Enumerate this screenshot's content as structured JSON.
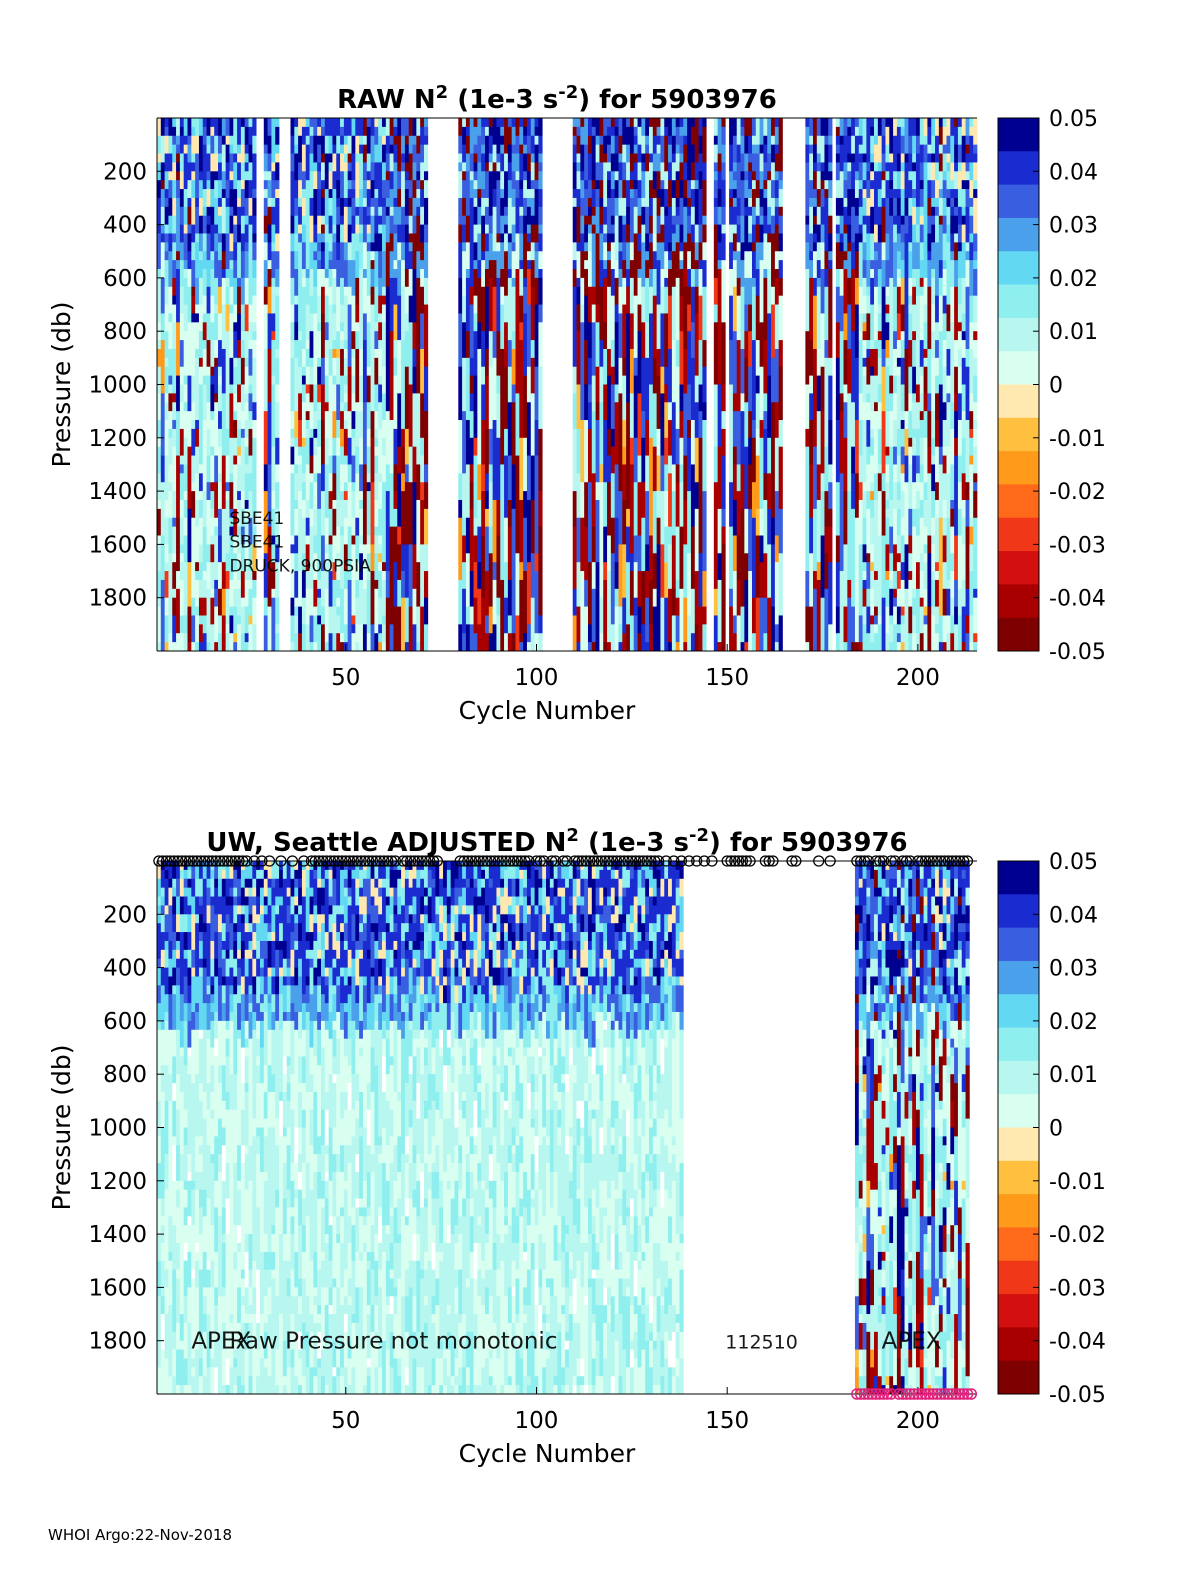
{
  "colors": {
    "axis": "#000000",
    "background": "#ffffff",
    "marker_top": "#000000",
    "marker_bottom": "#e0207a"
  },
  "palette": [
    "#7f0000",
    "#a80000",
    "#d21010",
    "#f03818",
    "#ff6a1a",
    "#ff9a1a",
    "#ffc040",
    "#ffe9b0",
    "#d9fff0",
    "#b8f7ef",
    "#8fefef",
    "#62d8f2",
    "#4aa0ea",
    "#3a5ee0",
    "#1a2cd0",
    "#000090"
  ],
  "chart_data": [
    {
      "type": "heatmap",
      "id": "raw",
      "title": "RAW N",
      "title_sup": "2",
      "title_mid": " (1e-3 s",
      "title_sup2": "-2",
      "title_tail": ") for 5903976",
      "xlabel": "Cycle Number",
      "ylabel": "Pressure (db)",
      "xlim": [
        1,
        215
      ],
      "ylim": [
        0,
        2000
      ],
      "y_reversed": true,
      "xticks": [
        "50",
        "100",
        "150",
        "200"
      ],
      "xtick_values": [
        50,
        100,
        150,
        200
      ],
      "yticks": [
        "200",
        "400",
        "600",
        "800",
        "1000",
        "1200",
        "1400",
        "1600",
        "1800"
      ],
      "ytick_values": [
        200,
        400,
        600,
        800,
        1000,
        1200,
        1400,
        1600,
        1800
      ],
      "clim": [
        -0.05,
        0.05
      ],
      "colorbar_ticks": [
        "0.05",
        "0.04",
        "0.03",
        "0.02",
        "0.01",
        "0",
        "-0.01",
        "-0.02",
        "-0.03",
        "-0.04",
        "-0.05"
      ],
      "colorbar_tick_values": [
        0.05,
        0.04,
        0.03,
        0.02,
        0.01,
        0,
        -0.01,
        -0.02,
        -0.03,
        -0.04,
        -0.05
      ],
      "missing_cycles": [
        [
          27,
          28
        ],
        [
          33,
          35
        ],
        [
          72,
          79
        ],
        [
          102,
          109
        ],
        [
          145,
          146
        ],
        [
          150,
          150
        ],
        [
          165,
          170
        ],
        [
          178,
          178
        ]
      ],
      "annotations": [
        {
          "text": "SBE41",
          "x": 20,
          "y": 1500
        },
        {
          "text": "SBE41",
          "x": 20,
          "y": 1590
        },
        {
          "text": "DRUCK, 900PSIA",
          "x": 20,
          "y": 1680
        }
      ]
    },
    {
      "type": "heatmap",
      "id": "adjusted",
      "title": "UW, Seattle  ADJUSTED N",
      "title_sup": "2",
      "title_mid": " (1e-3 s",
      "title_sup2": "-2",
      "title_tail": ") for 5903976",
      "xlabel": "Cycle Number",
      "ylabel": "Pressure (db)",
      "xlim": [
        1,
        215
      ],
      "ylim": [
        0,
        2000
      ],
      "y_reversed": true,
      "xticks": [
        "50",
        "100",
        "150",
        "200"
      ],
      "xtick_values": [
        50,
        100,
        150,
        200
      ],
      "yticks": [
        "200",
        "400",
        "600",
        "800",
        "1000",
        "1200",
        "1400",
        "1600",
        "1800"
      ],
      "ytick_values": [
        200,
        400,
        600,
        800,
        1000,
        1200,
        1400,
        1600,
        1800
      ],
      "clim": [
        -0.05,
        0.05
      ],
      "colorbar_ticks": [
        "0.05",
        "0.04",
        "0.03",
        "0.02",
        "0.01",
        "0",
        "-0.01",
        "-0.02",
        "-0.03",
        "-0.04",
        "-0.05"
      ],
      "colorbar_tick_values": [
        0.05,
        0.04,
        0.03,
        0.02,
        0.01,
        0,
        -0.01,
        -0.02,
        -0.03,
        -0.04,
        -0.05
      ],
      "data_ranges": [
        [
          1,
          138
        ],
        [
          184,
          213
        ]
      ],
      "adjusted_until": 138,
      "annotations": [
        {
          "text": "APEX",
          "x": 10,
          "y": 1800
        },
        {
          "text": "Raw Pressure not monotonic",
          "x": 20,
          "y": 1800
        },
        {
          "text": "112510",
          "x": 150,
          "y": 1800
        },
        {
          "text": "APEX",
          "x": 191,
          "y": 1800
        }
      ],
      "marker_cycles_top": [
        1,
        2,
        3,
        4,
        5,
        6,
        7,
        8,
        9,
        10,
        11,
        12,
        13,
        14,
        15,
        16,
        17,
        18,
        19,
        20,
        21,
        22,
        23,
        24,
        26,
        28,
        30,
        33,
        36,
        39,
        41,
        42,
        43,
        44,
        45,
        46,
        47,
        48,
        49,
        50,
        51,
        52,
        53,
        54,
        55,
        56,
        57,
        58,
        59,
        60,
        61,
        62,
        63,
        65,
        66,
        67,
        68,
        69,
        70,
        71,
        72,
        73,
        74,
        80,
        81,
        82,
        83,
        84,
        85,
        86,
        87,
        88,
        89,
        90,
        91,
        92,
        93,
        94,
        95,
        96,
        97,
        98,
        100,
        101,
        102,
        104,
        105,
        107,
        108,
        110,
        111,
        112,
        113,
        114,
        115,
        116,
        117,
        118,
        119,
        120,
        121,
        122,
        123,
        124,
        125,
        126,
        127,
        128,
        129,
        130,
        131,
        132,
        134,
        136,
        138,
        140,
        142,
        144,
        146,
        150,
        151,
        152,
        153,
        154,
        155,
        156,
        160,
        161,
        162,
        167,
        168,
        174,
        177,
        184,
        185,
        186,
        187,
        189,
        190,
        191,
        193,
        194,
        196,
        197,
        198,
        200,
        201,
        202,
        203,
        204,
        205,
        206,
        207,
        208,
        209,
        210,
        211,
        212,
        213
      ],
      "marker_cycles_bottom": [
        184,
        185,
        186,
        187,
        188,
        189,
        190,
        191,
        192,
        193,
        195,
        196,
        197,
        198,
        199,
        200,
        201,
        202,
        203,
        204,
        205,
        206,
        207,
        208,
        209,
        210,
        211,
        212,
        213,
        214
      ]
    }
  ],
  "footer": "WHOI Argo:22-Nov-2018"
}
